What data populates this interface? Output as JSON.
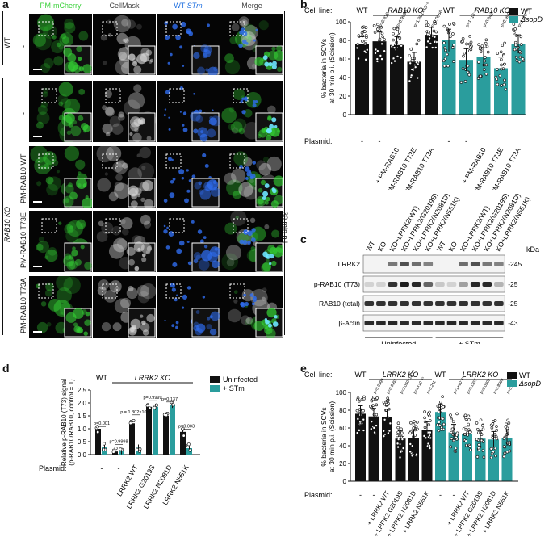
{
  "panel_a": {
    "label": "a",
    "columns": [
      "PM-mCherry",
      "CellMask",
      "WT STm",
      "Merge"
    ],
    "column_colors": [
      "#3bd13b",
      "#444444",
      "#1e6fe0",
      "#444444"
    ],
    "rows": [
      {
        "label": "-",
        "group": "WT"
      },
      {
        "label": "-",
        "group": "RAB10 KO"
      },
      {
        "label": "PM-RAB10 WT",
        "group": "RAB10 KO"
      },
      {
        "label": "PM-RAB10 T73E",
        "group": "RAB10 KO"
      },
      {
        "label": "PM-RAB10 T73A",
        "group": "RAB10 KO"
      }
    ],
    "group_wt": "WT",
    "group_ko": "RAB10 KO",
    "time_label": "30 min p.i."
  },
  "panel_b": {
    "label": "b",
    "cell_line_label": "Cell line:",
    "groups": [
      "WT",
      "RAB10 KO",
      "WT",
      "RAB10 KO"
    ],
    "legend": [
      {
        "name": "WT",
        "color": "#111111"
      },
      {
        "name": "ΔsopD",
        "color": "#2a9d9d"
      }
    ],
    "plasmid_label": "Plasmid:",
    "plasmids": [
      "-",
      "-",
      "+ PM-RAB10",
      "+ PM-RAB10 T73E",
      "+ PM-RAB10 T73A",
      "-",
      "-",
      "+ PM-RAB10",
      "+ PM-RAB10 T73E",
      "+ PM-RAB10 T73A"
    ],
    "pvals": [
      "",
      "p=0.939",
      "p=0.9998",
      "p=1.391×10⁻⁶",
      "p=0.0056",
      "",
      "p=1×10⁻¹⁵",
      "p=0.342",
      "p=0.9999",
      "p=1×10⁻¹⁵"
    ]
  },
  "panel_c": {
    "label": "c",
    "lanes": [
      "WT",
      "KO",
      "KO+LRRK2(WT)",
      "KO+LRRK2(G2019S)",
      "KO+LRRK2(N2081D)",
      "KO+LRRK2(N551K)",
      "WT",
      "KO",
      "KO+LRRK2(WT)",
      "KO+LRRK2(G2019S)",
      "KO+LRRK2(N2081D)",
      "KO+LRRK2(N551K)"
    ],
    "blots": [
      "LRRK2",
      "p-RAB10 (T73)",
      "RAB10 (total)",
      "β-Actin"
    ],
    "kda_label": "kDa",
    "kda": [
      "245",
      "25",
      "25",
      "43"
    ],
    "conditions": [
      "Uninfected",
      "+ STm"
    ]
  },
  "panel_d": {
    "label": "d",
    "cell_line_wt": "WT",
    "cell_line_ko": "LRRK2 KO",
    "ylabel": "Relative p-RAB10 (T73) signal\n(p-RAB10/RAB10, control = 1)",
    "legend": [
      {
        "name": "Uninfected",
        "color": "#111111"
      },
      {
        "name": "+ STm",
        "color": "#2a9d9d"
      }
    ],
    "plasmid_label": "Plasmid:",
    "plasmids": [
      "-",
      "-",
      "LRRK2 WT",
      "LRRK2 G2019S",
      "LRRK2 N2081D",
      "LRRK2 N551K"
    ],
    "pvals": [
      "p=0.001",
      "p=0.9998",
      "p = 1.302×10⁻⁵",
      "p=0.9999",
      "p=0.137",
      "p=0.003"
    ]
  },
  "panel_e": {
    "label": "e",
    "cell_line_label": "Cell line:",
    "groups": [
      "WT",
      "LRRK2 KO",
      "WT",
      "LRRK2 KO"
    ],
    "legend": [
      {
        "name": "WT",
        "color": "#111111"
      },
      {
        "name": "ΔsopD",
        "color": "#2a9d9d"
      }
    ],
    "ylabel": "% bacteria in SCVs\nat 30 min p.i. (Scission)",
    "plasmid_label": "Plasmid:",
    "plasmids": [
      "-",
      "-",
      "+ LRRK2 WT",
      "+ LRRK2 G2019S",
      "+ LRRK2 N2081D",
      "+ LRRK2 N551K",
      "-",
      "-",
      "+ LRRK2 WT",
      "+ LRRK2 G2019S",
      "+ LRRK2 N2081D",
      "+ LRRK2 N551K"
    ],
    "pvals": [
      "",
      "p=0.9999",
      "p=0.9951",
      "p=2.060×10⁻¹⁰",
      "p=1×10⁻¹⁵",
      "p=0.211",
      "",
      "p=1×10⁻¹⁵",
      "p=0.1357",
      "p=0.0302",
      "p=0.9999",
      "p=0.301"
    ]
  },
  "chart_data": [
    {
      "type": "bar",
      "panel": "b",
      "ylabel": "% bacteria in SCVs\nat 30 min p.i. (Scission)",
      "ylim": [
        0,
        100
      ],
      "yticks": [
        0,
        20,
        40,
        60,
        80,
        100
      ],
      "series": [
        {
          "name": "WT",
          "values": [
            76,
            79,
            75,
            57,
            86,
            null,
            null,
            null,
            null,
            null
          ]
        },
        {
          "name": "ΔsopD",
          "values": [
            null,
            null,
            null,
            null,
            null,
            80,
            59,
            62,
            50,
            76
          ]
        }
      ],
      "errors": [
        8,
        10,
        9,
        10,
        8,
        12,
        12,
        10,
        12,
        10
      ]
    },
    {
      "type": "bar",
      "panel": "d",
      "ylim": [
        0,
        2.5
      ],
      "yticks": [
        0,
        0.5,
        1.0,
        1.5,
        2.0,
        2.5
      ],
      "categories": [
        "-",
        "-",
        "LRRK2 WT",
        "LRRK2 G2019S",
        "LRRK2 N2081D",
        "LRRK2 N551K"
      ],
      "series": [
        {
          "name": "Uninfected",
          "values": [
            1.0,
            0.12,
            1.21,
            1.85,
            1.51,
            0.88
          ]
        },
        {
          "name": "+ STm",
          "values": [
            0.28,
            0.13,
            0.27,
            1.85,
            1.93,
            0.25
          ]
        }
      ]
    },
    {
      "type": "bar",
      "panel": "e",
      "ylim": [
        0,
        100
      ],
      "yticks": [
        0,
        20,
        40,
        60,
        80,
        100
      ],
      "series": [
        {
          "name": "WT",
          "values": [
            76,
            73,
            72,
            48,
            49,
            58,
            null,
            null,
            null,
            null,
            null,
            null
          ]
        },
        {
          "name": "ΔsopD",
          "values": [
            null,
            null,
            null,
            null,
            null,
            null,
            78,
            55,
            53,
            48,
            47,
            49
          ]
        }
      ]
    }
  ]
}
